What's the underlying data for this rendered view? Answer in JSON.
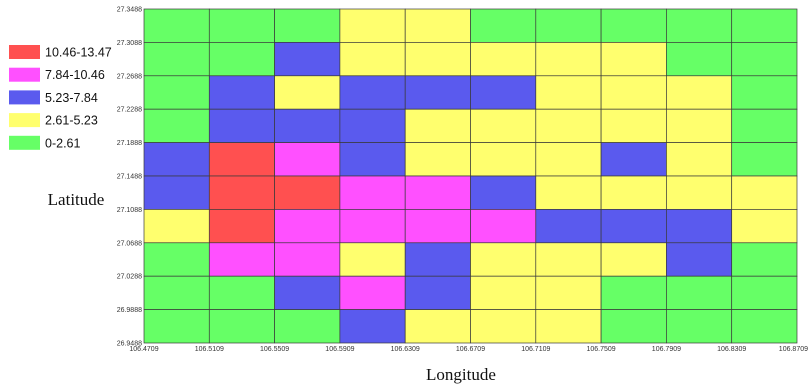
{
  "chart_data": {
    "type": "heatmap",
    "xlabel": "Longitude",
    "ylabel": "Latitude",
    "x_ticks": [
      "106.4709",
      "106.5109",
      "106.5509",
      "106.5909",
      "106.6309",
      "106.6709",
      "106.7109",
      "106.7509",
      "106.7909",
      "106.8309",
      "106.8709"
    ],
    "y_ticks": [
      "27.3488",
      "27.3088",
      "27.2688",
      "27.2288",
      "27.1888",
      "27.1488",
      "27.1088",
      "27.0688",
      "27.0288",
      "26.9888",
      "26.9488"
    ],
    "xlim": [
      106.4709,
      106.8709
    ],
    "ylim": [
      26.9488,
      27.3488
    ],
    "legend": [
      {
        "label": "10.46-13.47",
        "color": "#ff5050"
      },
      {
        "label": "7.84-10.46",
        "color": "#ff50ff"
      },
      {
        "label": "5.23-7.84",
        "color": "#5a5aee"
      },
      {
        "label": "2.61-5.23",
        "color": "#ffff6e"
      },
      {
        "label": "0-2.61",
        "color": "#66ff66"
      }
    ],
    "grid_class_index_top_to_bottom": [
      [
        4,
        4,
        4,
        3,
        3,
        4,
        4,
        4,
        4,
        4
      ],
      [
        4,
        4,
        2,
        3,
        3,
        3,
        3,
        3,
        4,
        4
      ],
      [
        4,
        2,
        3,
        2,
        2,
        2,
        3,
        3,
        3,
        4
      ],
      [
        4,
        2,
        2,
        2,
        3,
        3,
        3,
        3,
        3,
        4
      ],
      [
        2,
        0,
        1,
        2,
        3,
        3,
        3,
        2,
        3,
        4
      ],
      [
        2,
        0,
        0,
        1,
        1,
        2,
        3,
        3,
        3,
        3
      ],
      [
        3,
        0,
        1,
        1,
        1,
        1,
        2,
        2,
        2,
        3
      ],
      [
        4,
        1,
        1,
        3,
        2,
        3,
        3,
        3,
        2,
        4
      ],
      [
        4,
        4,
        2,
        1,
        2,
        3,
        3,
        4,
        4,
        4
      ],
      [
        4,
        4,
        4,
        2,
        3,
        3,
        3,
        4,
        4,
        4
      ]
    ]
  }
}
